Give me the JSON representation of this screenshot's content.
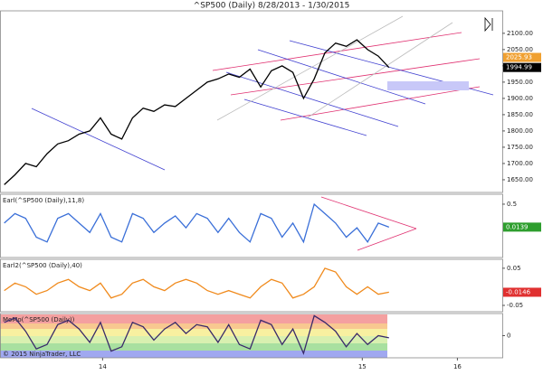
{
  "chart_data": [
    {
      "type": "line",
      "title": "^SP500 (Daily)  8/28/2013 - 1/30/2015",
      "x": [
        0,
        10,
        20,
        30,
        40,
        50,
        60,
        70,
        80,
        90,
        100,
        110,
        120,
        130,
        140,
        150,
        160,
        170,
        180,
        190,
        200,
        210,
        220,
        230,
        240,
        250,
        260,
        270,
        280,
        290,
        300,
        310,
        320,
        330,
        340,
        350,
        360
      ],
      "series": [
        {
          "color": "#000000",
          "values": [
            1635,
            1665,
            1700,
            1690,
            1730,
            1760,
            1770,
            1790,
            1800,
            1840,
            1790,
            1775,
            1840,
            1870,
            1860,
            1880,
            1875,
            1900,
            1925,
            1950,
            1960,
            1975,
            1965,
            1990,
            1935,
            1985,
            2000,
            1980,
            1900,
            1960,
            2040,
            2070,
            2060,
            2080,
            2050,
            2030,
            1995
          ]
        }
      ],
      "xlim": [
        -4,
        466
      ],
      "ylim": [
        1611,
        2169
      ],
      "yticks": [
        {
          "value": 1650,
          "label": "1650.00"
        },
        {
          "value": 1700,
          "label": "1700.00"
        },
        {
          "value": 1750,
          "label": "1750.00"
        },
        {
          "value": 1800,
          "label": "1800.00"
        },
        {
          "value": 1850,
          "label": "1850.00"
        },
        {
          "value": 1900,
          "label": "1900.00"
        },
        {
          "value": 1950,
          "label": "1950.00"
        },
        {
          "value": 2000,
          "label": "2000.00"
        },
        {
          "value": 2050,
          "label": "2050.00"
        },
        {
          "value": 2100,
          "label": "2100.00"
        }
      ],
      "markers": [
        {
          "value": 2025.93,
          "color": "#f0a030"
        },
        {
          "value": 1994.99,
          "color": "#000000"
        }
      ]
    },
    {
      "type": "line",
      "title": "Earl(^SP500 (Daily),11,8)",
      "x": [
        0,
        10,
        20,
        30,
        40,
        50,
        60,
        70,
        80,
        90,
        100,
        110,
        120,
        130,
        140,
        150,
        160,
        170,
        180,
        190,
        200,
        210,
        220,
        230,
        240,
        250,
        260,
        270,
        280,
        290,
        300,
        310,
        320,
        330,
        340,
        350,
        360
      ],
      "series": [
        {
          "color": "#3a6fd8",
          "values": [
            0.1,
            0.3,
            0.2,
            -0.2,
            -0.3,
            0.2,
            0.3,
            0.1,
            -0.1,
            0.3,
            -0.2,
            -0.3,
            0.3,
            0.2,
            -0.1,
            0.1,
            0.25,
            0.0,
            0.3,
            0.2,
            -0.1,
            0.2,
            -0.1,
            -0.3,
            0.3,
            0.2,
            -0.2,
            0.1,
            -0.3,
            0.5,
            0.3,
            0.1,
            -0.2,
            0.0,
            -0.3,
            0.1,
            0.0139
          ]
        }
      ],
      "xlim": [
        -4,
        466
      ],
      "ylim": [
        -0.63,
        0.71
      ],
      "yticks": [
        0.5
      ],
      "markers": [
        {
          "value": 0.0139,
          "color": "#2e9e2e"
        }
      ]
    },
    {
      "type": "line",
      "title": "Earl2(^SP500 (Daily),40)",
      "x": [
        0,
        10,
        20,
        30,
        40,
        50,
        60,
        70,
        80,
        90,
        100,
        110,
        120,
        130,
        140,
        150,
        160,
        170,
        180,
        190,
        200,
        210,
        220,
        230,
        240,
        250,
        260,
        270,
        280,
        290,
        300,
        310,
        320,
        330,
        340,
        350,
        360
      ],
      "series": [
        {
          "color": "#f08a1c",
          "values": [
            -0.01,
            0.01,
            0.0,
            -0.02,
            -0.01,
            0.01,
            0.02,
            0.0,
            -0.01,
            0.01,
            -0.03,
            -0.02,
            0.01,
            0.02,
            0.0,
            -0.01,
            0.01,
            0.02,
            0.01,
            -0.01,
            -0.02,
            -0.01,
            -0.02,
            -0.03,
            0.0,
            0.02,
            0.01,
            -0.03,
            -0.02,
            0.0,
            0.05,
            0.04,
            0.0,
            -0.02,
            0.0,
            -0.02,
            -0.0146
          ]
        }
      ],
      "xlim": [
        -4,
        466
      ],
      "ylim": [
        -0.067,
        0.074
      ],
      "yticks": [
        0.05,
        -0.05
      ],
      "markers": [
        {
          "value": -0.0146,
          "color": "#e03030"
        }
      ]
    },
    {
      "type": "line",
      "title": "MoMo(^SP500 (Daily))",
      "note": "© 2015 NinjaTrader, LLC",
      "x": [
        0,
        10,
        20,
        30,
        40,
        50,
        60,
        70,
        80,
        90,
        100,
        110,
        120,
        130,
        140,
        150,
        160,
        170,
        180,
        190,
        200,
        210,
        220,
        230,
        240,
        250,
        260,
        270,
        280,
        290,
        300,
        310,
        320,
        330,
        340,
        350,
        360
      ],
      "series": [
        {
          "color": "#3a2a6a",
          "values": [
            0.6,
            0.8,
            0.2,
            -0.6,
            -0.4,
            0.5,
            0.7,
            0.3,
            -0.3,
            0.6,
            -0.7,
            -0.5,
            0.6,
            0.4,
            -0.2,
            0.3,
            0.6,
            0.1,
            0.5,
            0.4,
            -0.3,
            0.5,
            -0.4,
            -0.6,
            0.7,
            0.5,
            -0.4,
            0.3,
            -0.8,
            0.9,
            0.6,
            0.2,
            -0.5,
            0.1,
            -0.4,
            0.0,
            -0.1
          ]
        }
      ],
      "xlim": [
        -4,
        466
      ],
      "ylim": [
        -1,
        1
      ],
      "yticks": [
        0
      ],
      "xticks": [
        {
          "value": 92,
          "label": "14"
        },
        {
          "value": 335,
          "label": "15"
        },
        {
          "value": 424,
          "label": "16"
        }
      ]
    }
  ]
}
